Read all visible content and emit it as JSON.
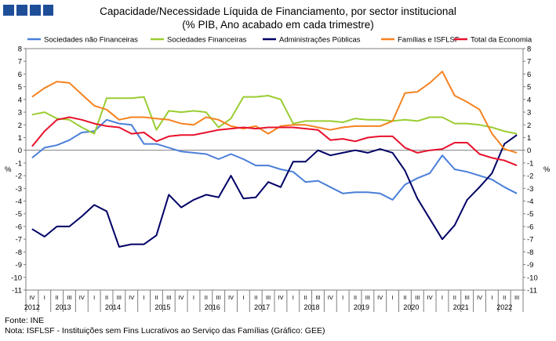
{
  "title_line1": "Capacidade/Necessidade Líquida de Financiamento, por sector institucional",
  "title_line2": "(% PIB, Ano acabado em cada trimestre)",
  "source": "Fonte: INE",
  "note": "Nota: ISFLSF - Instituições sem Fins Lucrativos ao Serviço das Famílias (Gráfico: GEE)",
  "colors": {
    "logo": "#1f4e99"
  },
  "chart_data": {
    "type": "line",
    "ylabel_left": "%",
    "ylabel_right": "%",
    "ylim": [
      -11,
      8
    ],
    "yticks": [
      "8",
      "7",
      "6",
      "5",
      "4",
      "3",
      "2",
      "1",
      "0",
      "-1",
      "-2",
      "-3",
      "-4",
      "-5",
      "-6",
      "-7",
      "-8",
      "-9",
      "-10",
      "-11"
    ],
    "x": [
      "2012Q4",
      "2013Q1",
      "2013Q2",
      "2013Q3",
      "2013Q4",
      "2014Q1",
      "2014Q2",
      "2014Q3",
      "2014Q4",
      "2015Q1",
      "2015Q2",
      "2015Q3",
      "2015Q4",
      "2016Q1",
      "2016Q2",
      "2016Q3",
      "2016Q4",
      "2017Q1",
      "2017Q2",
      "2017Q3",
      "2017Q4",
      "2018Q1",
      "2018Q2",
      "2018Q3",
      "2018Q4",
      "2019Q1",
      "2019Q2",
      "2019Q3",
      "2019Q4",
      "2020Q1",
      "2020Q2",
      "2020Q3",
      "2020Q4",
      "2021Q1",
      "2021Q2",
      "2021Q3",
      "2021Q4",
      "2022Q1",
      "2022Q2",
      "2022Q3"
    ],
    "quarter_labels": [
      "IV",
      "I",
      "II",
      "III",
      "IV",
      "I",
      "II",
      "III",
      "IV",
      "I",
      "II",
      "III",
      "IV",
      "I",
      "II",
      "III",
      "IV",
      "I",
      "II",
      "III",
      "IV",
      "I",
      "II",
      "III",
      "IV",
      "I",
      "II",
      "III",
      "IV",
      "I",
      "II",
      "III",
      "IV",
      "I",
      "II",
      "III",
      "IV",
      "I",
      "II",
      "III"
    ],
    "year_labels": [
      {
        "label": "2012",
        "at": 0
      },
      {
        "label": "2013",
        "at": 2.5
      },
      {
        "label": "2014",
        "at": 6.5
      },
      {
        "label": "2015",
        "at": 10.5
      },
      {
        "label": "2016",
        "at": 14.5
      },
      {
        "label": "2017",
        "at": 18.5
      },
      {
        "label": "2018",
        "at": 22.5
      },
      {
        "label": "2019",
        "at": 26.5
      },
      {
        "label": "2020",
        "at": 30.5
      },
      {
        "label": "2021",
        "at": 34.5
      },
      {
        "label": "2022",
        "at": 38
      }
    ],
    "legend_position": "top",
    "series": [
      {
        "name": "Sociedades não Financeiras",
        "color": "#4a7fd8",
        "values": [
          -0.6,
          0.2,
          0.4,
          0.8,
          1.4,
          1.5,
          2.4,
          2.1,
          2.0,
          0.5,
          0.5,
          0.2,
          -0.1,
          -0.2,
          -0.3,
          -0.7,
          -0.3,
          -0.7,
          -1.2,
          -1.2,
          -1.5,
          -1.7,
          -2.5,
          -2.4,
          -2.9,
          -3.4,
          -3.3,
          -3.3,
          -3.4,
          -3.9,
          -2.7,
          -2.2,
          -1.8,
          -0.4,
          -1.5,
          -1.7,
          -2.0,
          -2.3,
          -2.9,
          -3.4
        ]
      },
      {
        "name": "Sociedades Financeiras",
        "color": "#9acd32",
        "values": [
          2.8,
          3.0,
          2.5,
          2.4,
          1.8,
          1.3,
          4.1,
          4.1,
          4.1,
          4.2,
          1.6,
          3.1,
          3.0,
          3.1,
          3.0,
          1.8,
          2.5,
          4.2,
          4.2,
          4.3,
          4.0,
          2.1,
          2.3,
          2.3,
          2.3,
          2.2,
          2.5,
          2.4,
          2.4,
          2.3,
          2.4,
          2.3,
          2.6,
          2.6,
          2.1,
          2.1,
          2.0,
          1.8,
          1.5,
          1.3
        ]
      },
      {
        "name": "Administrações Públicas",
        "color": "#000066",
        "values": [
          -6.2,
          -6.8,
          -6.0,
          -6.0,
          -5.2,
          -4.3,
          -4.8,
          -7.6,
          -7.4,
          -7.4,
          -6.7,
          -3.5,
          -4.5,
          -3.9,
          -3.5,
          -3.7,
          -2.0,
          -3.8,
          -3.7,
          -2.5,
          -2.9,
          -0.9,
          -0.9,
          0.0,
          -0.4,
          -0.2,
          0.0,
          -0.2,
          0.1,
          -0.2,
          -1.6,
          -3.8,
          -5.4,
          -7.0,
          -5.9,
          -3.9,
          -2.9,
          -1.8,
          0.5,
          1.2
        ]
      },
      {
        "name": "Famílias e ISFLSF",
        "color": "#f58220",
        "values": [
          4.2,
          4.9,
          5.4,
          5.3,
          4.4,
          3.5,
          3.2,
          2.4,
          2.6,
          2.6,
          2.5,
          2.4,
          2.1,
          2.0,
          2.6,
          2.4,
          1.9,
          1.7,
          1.9,
          1.3,
          1.9,
          2.0,
          2.0,
          1.8,
          1.6,
          1.8,
          1.9,
          1.9,
          1.9,
          2.3,
          4.5,
          4.6,
          5.3,
          6.2,
          4.3,
          3.8,
          3.2,
          1.3,
          0.1,
          -0.2
        ]
      },
      {
        "name": "Total da Economia",
        "color": "#e8112d",
        "values": [
          0.3,
          1.5,
          2.4,
          2.6,
          2.4,
          2.1,
          1.9,
          1.8,
          1.3,
          1.4,
          0.7,
          1.1,
          1.2,
          1.2,
          1.4,
          1.6,
          1.7,
          1.8,
          1.7,
          1.8,
          1.8,
          1.8,
          1.7,
          1.6,
          0.8,
          0.9,
          0.7,
          1.0,
          1.1,
          1.1,
          0.2,
          -0.2,
          0.0,
          0.1,
          0.6,
          0.6,
          -0.3,
          -0.6,
          -0.8,
          -1.2
        ]
      }
    ]
  }
}
